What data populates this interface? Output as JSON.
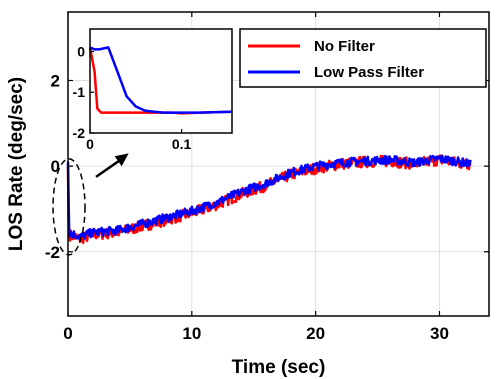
{
  "colors": {
    "no_filter": "#ff0000",
    "low_pass_filter": "#0000ff",
    "grid": "#e0e0e0",
    "axes": "#000000"
  },
  "chart_data": [
    {
      "type": "line",
      "title": "",
      "xlabel": "Time (sec)",
      "ylabel": "LOS Rate (deg/sec)",
      "xlim": [
        0,
        34
      ],
      "ylim": [
        -3.5,
        3.6
      ],
      "xticks": [
        0,
        10,
        20,
        30
      ],
      "yticks": [
        -2,
        0,
        2
      ],
      "xtick_labels": [
        "0",
        "10",
        "20",
        "30"
      ],
      "ytick_labels": [
        "-2",
        "0",
        "2"
      ],
      "grid": true,
      "legend_position": "top-right",
      "legend": [
        "No Filter",
        "Low Pass Filter"
      ],
      "annotation": "dashed ellipse around the initial transient near t = 0 with an arrow pointing to the zoomed inset",
      "series": [
        {
          "name": "No Filter",
          "color": "#ff0000",
          "noise_amplitude": 0.13,
          "x": [
            0,
            0.05,
            0.1,
            1,
            2,
            4,
            6,
            8,
            10,
            12,
            14,
            16,
            18,
            20,
            22,
            24,
            26,
            28,
            30,
            32,
            32.5
          ],
          "y": [
            0,
            -1.3,
            -1.6,
            -1.7,
            -1.6,
            -1.55,
            -1.4,
            -1.25,
            -1.1,
            -0.9,
            -0.65,
            -0.45,
            -0.2,
            -0.05,
            0.05,
            0.1,
            0.12,
            0.05,
            0.15,
            0.05,
            0.05
          ]
        },
        {
          "name": "Low Pass Filter",
          "color": "#0000ff",
          "noise_amplitude": 0.1,
          "x": [
            0,
            0.05,
            0.1,
            1,
            2,
            4,
            6,
            8,
            10,
            12,
            14,
            16,
            18,
            20,
            22,
            24,
            26,
            28,
            30,
            32,
            32.5
          ],
          "y": [
            0.1,
            -0.8,
            -1.55,
            -1.65,
            -1.55,
            -1.5,
            -1.35,
            -1.2,
            -1.05,
            -0.85,
            -0.6,
            -0.4,
            -0.15,
            0.0,
            0.08,
            0.12,
            0.15,
            0.08,
            0.18,
            0.08,
            0.05
          ]
        }
      ]
    },
    {
      "type": "line",
      "title": "",
      "xlabel": "",
      "ylabel": "",
      "xlim": [
        0,
        0.155
      ],
      "ylim": [
        -2,
        0.55
      ],
      "xticks": [
        0,
        0.1
      ],
      "yticks": [
        -2,
        -1,
        0
      ],
      "xtick_labels": [
        "0",
        "0.1"
      ],
      "ytick_labels": [
        "-2",
        "-1",
        "0"
      ],
      "grid": false,
      "series": [
        {
          "name": "No Filter",
          "color": "#ff0000",
          "x": [
            0,
            0.005,
            0.008,
            0.012,
            0.03,
            0.06,
            0.09,
            0.1,
            0.12,
            0.155
          ],
          "y": [
            0.1,
            -0.5,
            -1.4,
            -1.5,
            -1.5,
            -1.5,
            -1.5,
            -1.52,
            -1.5,
            -1.48
          ]
        },
        {
          "name": "Low Pass Filter",
          "color": "#0000ff",
          "x": [
            0,
            0.005,
            0.01,
            0.02,
            0.03,
            0.04,
            0.05,
            0.06,
            0.07,
            0.08,
            0.1,
            0.12,
            0.155
          ],
          "y": [
            0.1,
            0.05,
            0.05,
            0.1,
            -0.5,
            -1.1,
            -1.35,
            -1.45,
            -1.48,
            -1.5,
            -1.5,
            -1.5,
            -1.48
          ]
        }
      ]
    }
  ]
}
